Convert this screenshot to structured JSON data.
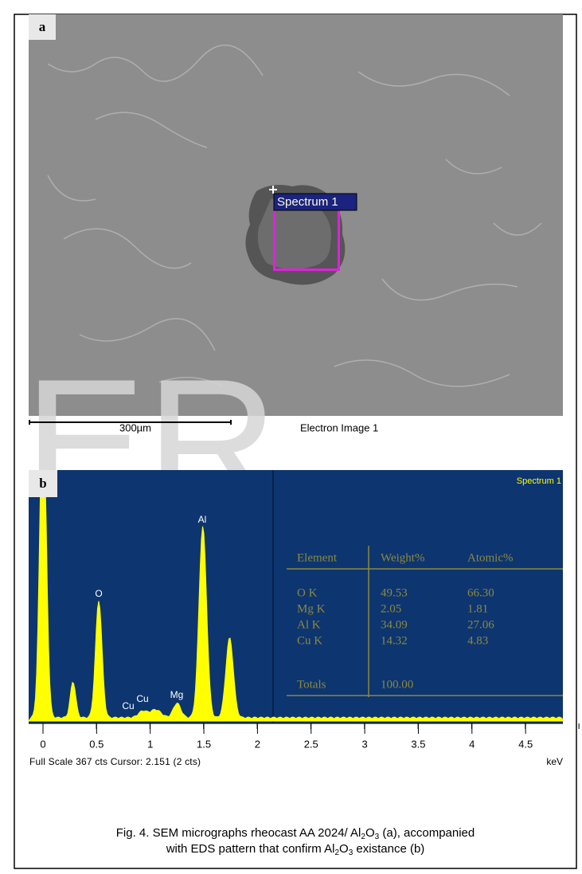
{
  "watermark": "ER",
  "panel_a": {
    "label": "a",
    "spectrum_label": "Spectrum 1",
    "scale_bar": "300µm",
    "image_caption": "Electron Image 1"
  },
  "panel_b": {
    "label": "b",
    "spectrum_title": "Spectrum 1",
    "peaks": [
      "O",
      "Al",
      "Mg",
      "Cu",
      "Cu"
    ],
    "table": {
      "header": [
        "Element",
        "Weight%",
        "Atomic%"
      ],
      "rows": [
        [
          "O K",
          49.53,
          66.3
        ],
        [
          "Mg K",
          2.05,
          1.81
        ],
        [
          "Al K",
          34.09,
          27.06
        ],
        [
          "Cu K",
          14.32,
          4.83
        ]
      ],
      "totals": [
        "Totals",
        100.0
      ]
    },
    "xticks": [
      0,
      0.5,
      1,
      1.5,
      2,
      2.5,
      3,
      3.5,
      4,
      4.5
    ],
    "x_unit": "keV",
    "status": "Full Scale 367 cts Cursor: 2.151  (2 cts)"
  },
  "caption": {
    "line1": [
      "Fig. 4. SEM micrographs rheocast AA 2024/ Al",
      "2",
      "O",
      "3",
      " (a), accompanied"
    ],
    "line2": [
      "with EDS pattern that confirm Al",
      "2",
      "O",
      "3",
      " existance (b)"
    ]
  }
}
